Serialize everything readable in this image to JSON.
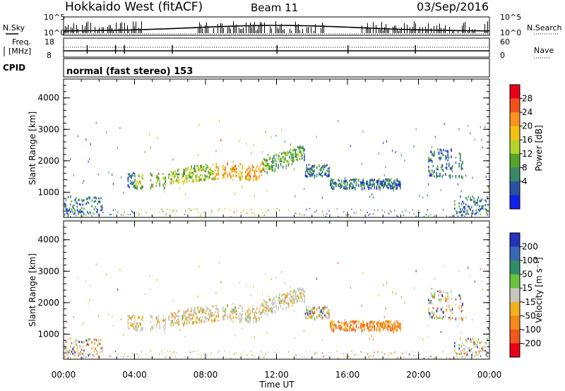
{
  "header": {
    "title": "Hokkaido West (fitACF)",
    "beam": "Beam 11",
    "date": "03/Sep/2016"
  },
  "top_panels": {
    "nsky_label": "N.Sky",
    "nsearch_label": "N.Search",
    "nsky_ticks": [
      "10^5",
      "10^0"
    ],
    "nsky_right_ticks": [
      "10^5",
      "10^0"
    ],
    "freq_label_line1": "Freq.",
    "freq_label_line2": "[MHz]",
    "freq_ticks": [
      "18",
      "8"
    ],
    "nave_label": "Nave",
    "nave_ticks": [
      "60",
      "0"
    ],
    "cpid_label": "CPID",
    "cpid_text": "normal (fast stereo) 153"
  },
  "colorbars": {
    "power": {
      "title": "Power [dB]",
      "labels": [
        "28",
        "24",
        "20",
        "16",
        "12",
        "8",
        "4"
      ],
      "colors": [
        "#e8001a",
        "#f4501c",
        "#f7931e",
        "#f2c212",
        "#b6d52a",
        "#56a52b",
        "#3a8a67",
        "#2a54a3",
        "#1220e8"
      ]
    },
    "velocity": {
      "title": "Velocity [m s⁻¹]",
      "labels": [
        "200",
        "100",
        "50",
        "15",
        "-15",
        "-50",
        "-100",
        "-200"
      ],
      "colors": [
        "#2233bb",
        "#3a68b8",
        "#2e8f66",
        "#6cc23a",
        "#c9c8c0",
        "#f2b21f",
        "#f48a1a",
        "#f0581c",
        "#e8001a"
      ]
    }
  },
  "chart_data": [
    {
      "type": "heatmap",
      "name": "power-panel",
      "ylabel": "Slant Range [km]",
      "xlabel": "",
      "yticks": [
        1000,
        2000,
        3000,
        4000
      ],
      "ylim": [
        200,
        4600
      ],
      "xlim_hours": [
        0,
        24
      ],
      "xticks": [
        "00:00",
        "04:00",
        "08:00",
        "12:00",
        "16:00",
        "20:00",
        "00:00"
      ],
      "colorbar": "Power [dB]"
    },
    {
      "type": "heatmap",
      "name": "velocity-panel",
      "ylabel": "Slant Range [km]",
      "xlabel": "Time UT",
      "yticks": [
        1000,
        2000,
        3000,
        4000
      ],
      "ylim": [
        200,
        4600
      ],
      "xlim_hours": [
        0,
        24
      ],
      "xticks": [
        "00:00",
        "04:00",
        "08:00",
        "12:00",
        "16:00",
        "20:00",
        "00:00"
      ],
      "colorbar": "Velocity [m s⁻¹]"
    }
  ]
}
